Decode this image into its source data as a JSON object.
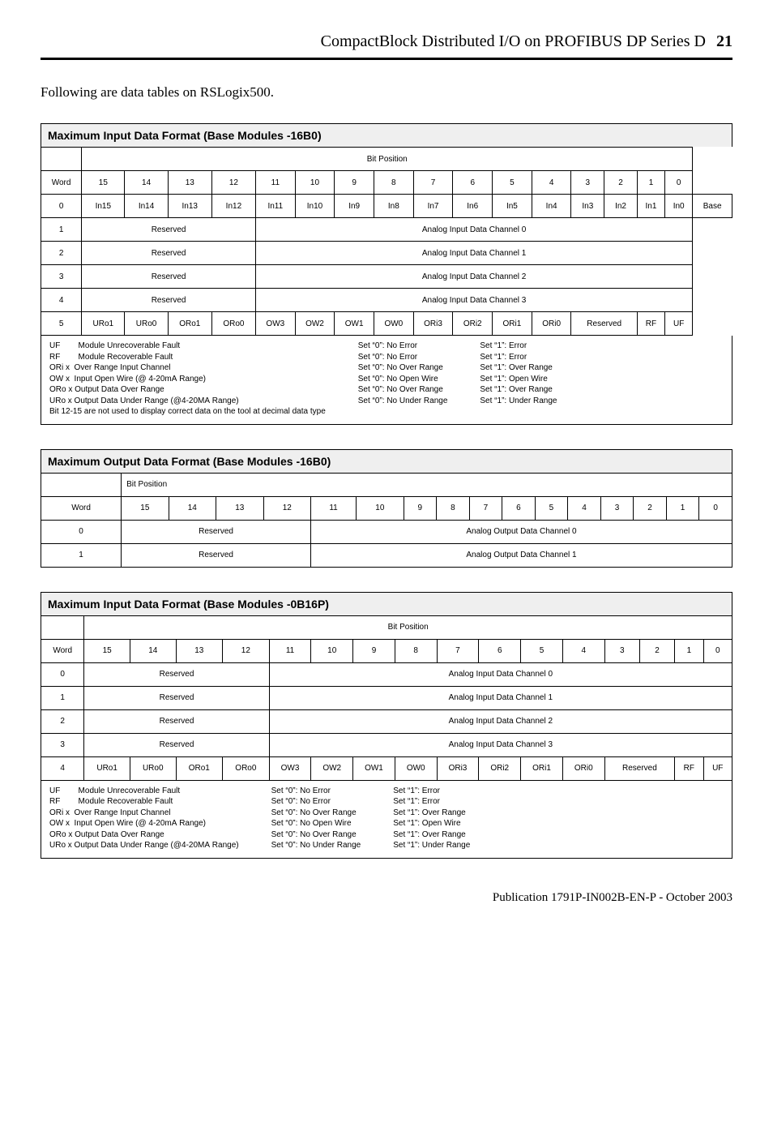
{
  "header": {
    "title": "CompactBlock Distributed I/O on PROFIBUS DP Series D",
    "pagenum": "21"
  },
  "intro": "Following are data tables on RSLogix500.",
  "table1": {
    "title": "Maximum Input Data Format (Base Modules -16B0)",
    "bit_position_label": "Bit Position",
    "header_bits": [
      "15",
      "14",
      "13",
      "12",
      "11",
      "10",
      "9",
      "8",
      "7",
      "6",
      "5",
      "4",
      "3",
      "2",
      "1",
      "0"
    ],
    "word_label": "Word",
    "base_label": "Base",
    "row0_word": "0",
    "row0_cells": [
      "In15",
      "In14",
      "In13",
      "In12",
      "In11",
      "In10",
      "In9",
      "In8",
      "In7",
      "In6",
      "In5",
      "In4",
      "In3",
      "In2",
      "In1",
      "In0"
    ],
    "rows_mid": [
      {
        "word": "1",
        "left": "Reserved",
        "right": "Analog Input Data Channel 0"
      },
      {
        "word": "2",
        "left": "Reserved",
        "right": "Analog Input Data Channel 1"
      },
      {
        "word": "3",
        "left": "Reserved",
        "right": "Analog Input Data Channel 2"
      },
      {
        "word": "4",
        "left": "Reserved",
        "right": "Analog Input Data Channel 3"
      }
    ],
    "row5_word": "5",
    "row5_cells": [
      "URo1",
      "URo0",
      "ORo1",
      "ORo0",
      "OW3",
      "OW2",
      "OW1",
      "OW0",
      "ORi3",
      "ORi2",
      "ORi1",
      "ORi0",
      "Reserved",
      "RF",
      "UF"
    ]
  },
  "legend": {
    "col1": [
      "UF        Module Unrecoverable Fault",
      "RF        Module Recoverable Fault",
      "ORi x  Over Range Input Channel",
      "OW x  Input Open Wire (@ 4-20mA Range)",
      "ORo x Output Data Over Range",
      "URo x Output Data Under Range (@4-20MA Range)",
      "Bit 12-15 are not used to display correct data on the tool at decimal data type"
    ],
    "col2": [
      "Set “0”: No Error",
      "Set “0”: No Error",
      "Set “0”: No Over Range",
      "Set “0”: No Open Wire",
      "Set “0”: No Over Range",
      "Set “0”: No Under Range"
    ],
    "col3": [
      "Set “1”: Error",
      "Set “1”: Error",
      "Set “1”: Over Range",
      "Set “1”: Open Wire",
      "Set “1”: Over Range",
      "Set “1”: Under Range"
    ]
  },
  "table2": {
    "title": "Maximum Output Data Format (Base Modules -16B0)",
    "bit_position_label": "Bit Position",
    "word_label": "Word",
    "header_bits": [
      "15",
      "14",
      "13",
      "12",
      "11",
      "10",
      "9",
      "8",
      "7",
      "6",
      "5",
      "4",
      "3",
      "2",
      "1",
      "0"
    ],
    "rows": [
      {
        "word": "0",
        "left": "Reserved",
        "right": "Analog Output Data Channel 0"
      },
      {
        "word": "1",
        "left": "Reserved",
        "right": "Analog Output Data Channel 1"
      }
    ]
  },
  "table3": {
    "title": "Maximum Input Data Format (Base Modules -0B16P)",
    "bit_position_label": "Bit Position",
    "word_label": "Word",
    "header_bits": [
      "15",
      "14",
      "13",
      "12",
      "11",
      "10",
      "9",
      "8",
      "7",
      "6",
      "5",
      "4",
      "3",
      "2",
      "1",
      "0"
    ],
    "rows_top": [
      {
        "word": "0",
        "left": "Reserved",
        "right": "Analog Input Data Channel 0"
      },
      {
        "word": "1",
        "left": "Reserved",
        "right": "Analog Input Data Channel 1"
      },
      {
        "word": "2",
        "left": "Reserved",
        "right": "Analog Input Data Channel 2"
      },
      {
        "word": "3",
        "left": "Reserved",
        "right": "Analog Input Data Channel 3"
      }
    ],
    "row4_word": "4",
    "row4_cells": [
      "URo1",
      "URo0",
      "ORo1",
      "ORo0",
      "OW3",
      "OW2",
      "OW1",
      "OW0",
      "ORi3",
      "ORi2",
      "ORi1",
      "ORi0",
      "Reserved",
      "RF",
      "UF"
    ]
  },
  "legend3": {
    "col1": [
      "UF        Module Unrecoverable Fault",
      "RF        Module Recoverable Fault",
      "ORi x  Over Range Input Channel",
      "OW x  Input Open Wire (@ 4-20mA Range)",
      "ORo x Output Data Over Range",
      "URo x Output Data Under Range (@4-20MA Range)"
    ],
    "col2": [
      "Set “0”: No Error",
      "Set “0”: No Error",
      "Set “0”: No Over Range",
      "Set “0”: No Open Wire",
      "Set “0”: No Over Range",
      "Set “0”: No Under Range"
    ],
    "col3": [
      "Set “1”: Error",
      "Set “1”: Error",
      "Set “1”: Over Range",
      "Set “1”: Open Wire",
      "Set “1”: Over Range",
      "Set “1”: Under Range"
    ]
  },
  "footer": "Publication  1791P-IN002B-EN-P - October 2003"
}
